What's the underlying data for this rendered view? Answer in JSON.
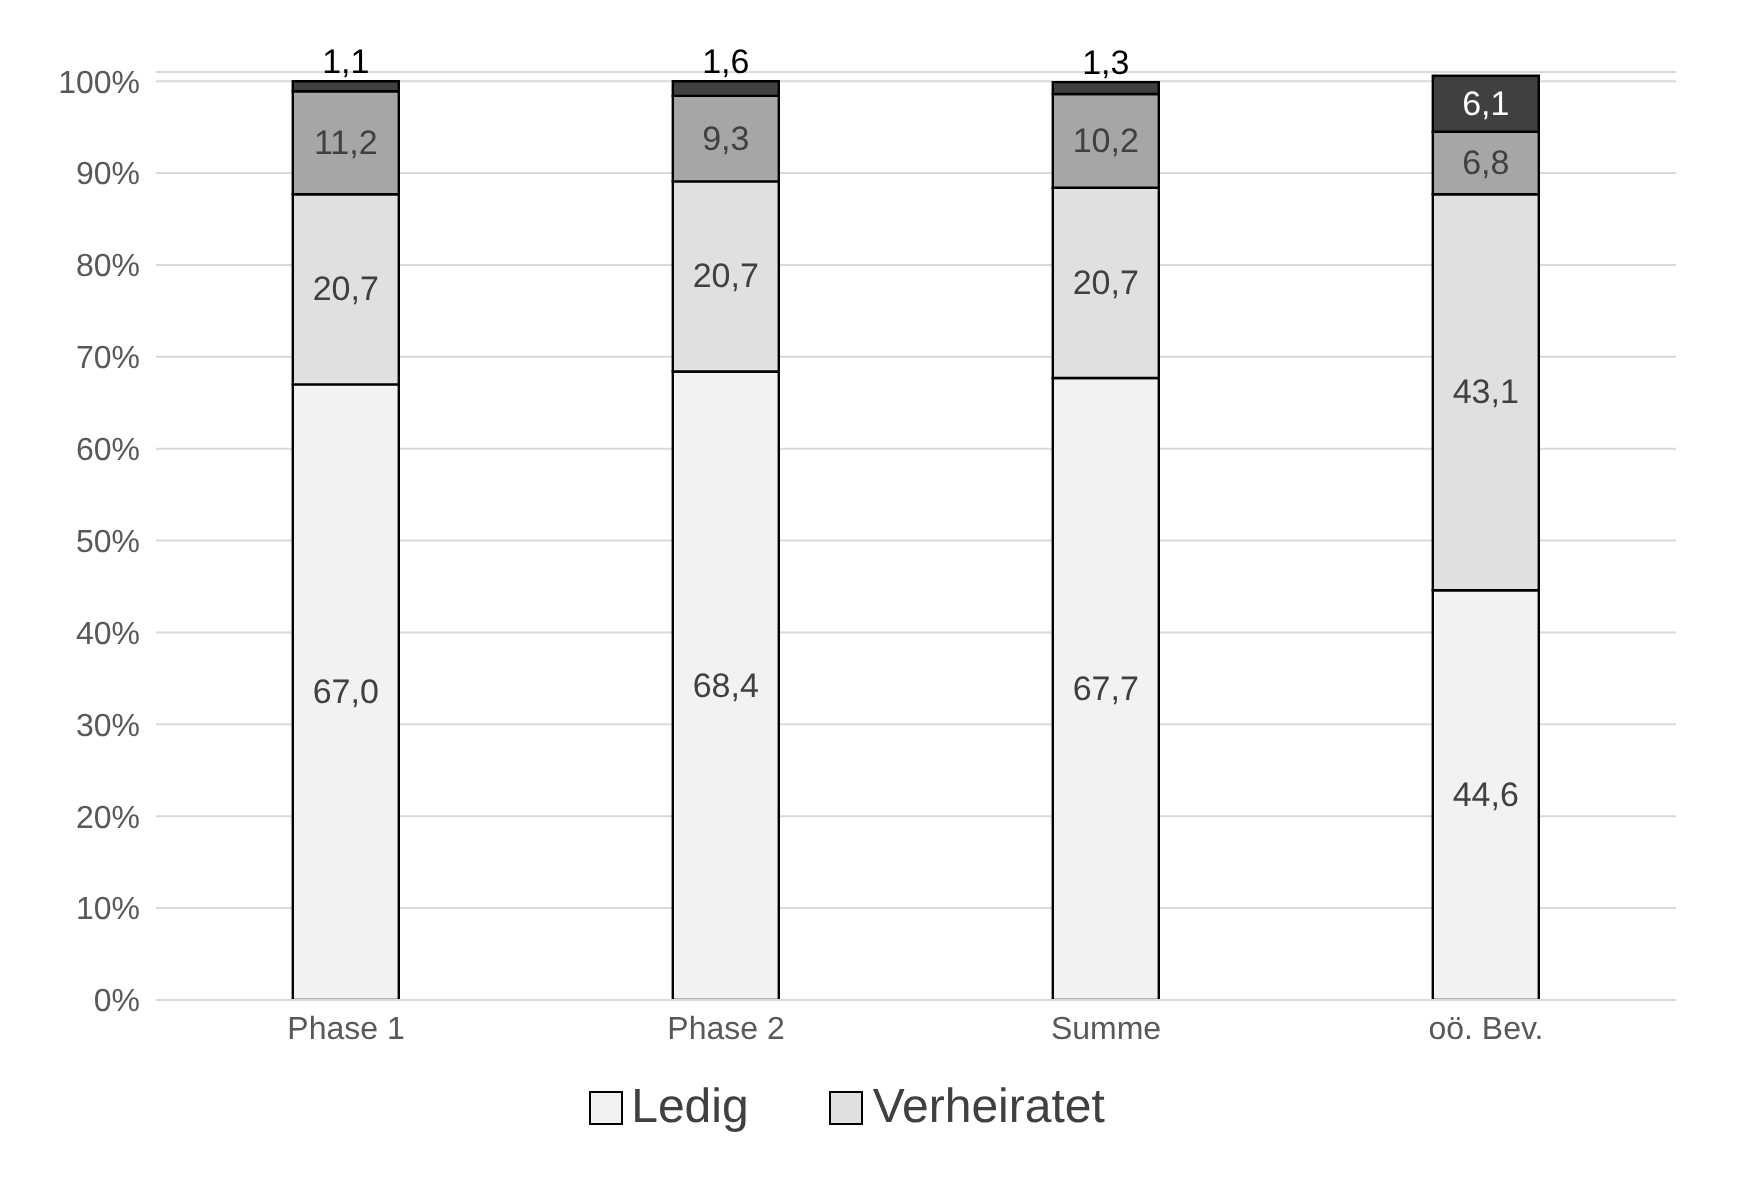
{
  "chart_data": {
    "type": "bar",
    "stacked": true,
    "categories": [
      "Phase 1",
      "Phase 2",
      "Summe",
      "oö. Bev."
    ],
    "series": [
      {
        "name": "Ledig",
        "color": "#f2f2f2",
        "values": [
          67.0,
          68.4,
          67.7,
          44.6
        ],
        "value_labels": [
          "67,0",
          "68,4",
          "67,7",
          "44,6"
        ]
      },
      {
        "name": "Verheiratet",
        "color": "#e0e0e0",
        "values": [
          20.7,
          20.7,
          20.7,
          43.1
        ],
        "value_labels": [
          "20,7",
          "20,7",
          "20,7",
          "43,1"
        ]
      },
      {
        "color": "#a6a6a6",
        "values": [
          11.2,
          9.3,
          10.2,
          6.8
        ],
        "value_labels": [
          "11,2",
          "9,3",
          "10,2",
          "6,8"
        ]
      },
      {
        "color": "#404040",
        "values": [
          1.1,
          1.6,
          1.3,
          6.1
        ],
        "value_labels": [
          "1,1",
          "1,6",
          "1,3",
          "6,1"
        ]
      }
    ],
    "ylim": [
      0,
      101
    ],
    "yticks": [
      {
        "value": 0,
        "label": "0%"
      },
      {
        "value": 10,
        "label": "10%"
      },
      {
        "value": 20,
        "label": "20%"
      },
      {
        "value": 30,
        "label": "30%"
      },
      {
        "value": 40,
        "label": "40%"
      },
      {
        "value": 50,
        "label": "50%"
      },
      {
        "value": 60,
        "label": "60%"
      },
      {
        "value": 70,
        "label": "70%"
      },
      {
        "value": 80,
        "label": "80%"
      },
      {
        "value": 90,
        "label": "90%"
      },
      {
        "value": 100,
        "label": "100%"
      }
    ],
    "grid": "y",
    "legend": "bottom"
  }
}
